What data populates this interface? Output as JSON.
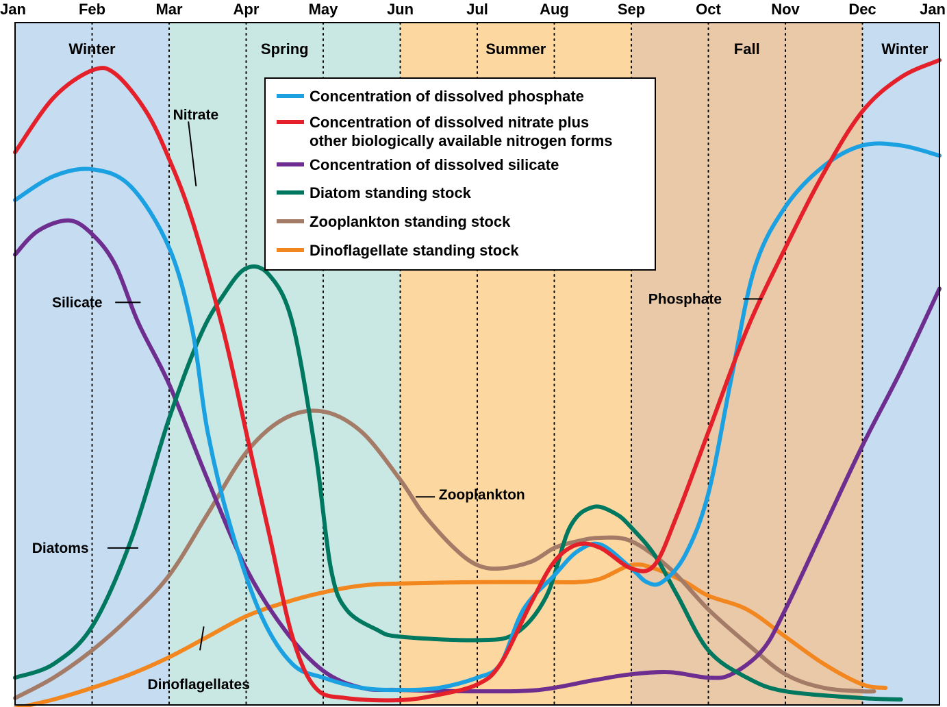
{
  "chart_data": {
    "type": "line",
    "title": "",
    "xlabel": "",
    "ylabel": "",
    "months": [
      "Jan",
      "Feb",
      "Mar",
      "Apr",
      "May",
      "Jun",
      "Jul",
      "Aug",
      "Sep",
      "Oct",
      "Nov",
      "Dec",
      "Jan"
    ],
    "x_range": [
      0,
      12
    ],
    "y_range": [
      0,
      100
    ],
    "grid": "vertical dotted lines at each month",
    "legend_position": "top-center",
    "seasons": [
      {
        "name": "Winter",
        "start": 0,
        "end": 2,
        "label_at": 1,
        "color": "#c5dcf1"
      },
      {
        "name": "Spring",
        "start": 2,
        "end": 5,
        "label_at": 3.5,
        "color": "#c9e7e3"
      },
      {
        "name": "Summer",
        "start": 5,
        "end": 8,
        "label_at": 6.5,
        "color": "#fcd8a0"
      },
      {
        "name": "Fall",
        "start": 8,
        "end": 11,
        "label_at": 9.5,
        "color": "#e9c9a7"
      },
      {
        "name": "Winter",
        "start": 11,
        "end": 12,
        "label_at": 11.55,
        "color": "#c5dcf1"
      }
    ],
    "legend": [
      {
        "lines": [
          "Concentration of dissolved phosphate"
        ],
        "color": "#1ba1e2"
      },
      {
        "lines": [
          "Concentration of dissolved nitrate plus",
          "other biologically available nitrogen forms"
        ],
        "color": "#e4202a"
      },
      {
        "lines": [
          "Concentration of dissolved silicate"
        ],
        "color": "#6e2e8f"
      },
      {
        "lines": [
          "Diatom standing stock"
        ],
        "color": "#00775f"
      },
      {
        "lines": [
          "Zooplankton standing stock"
        ],
        "color": "#a37b67"
      },
      {
        "lines": [
          "Dinoflagellate standing stock"
        ],
        "color": "#f2861f"
      }
    ],
    "series": [
      {
        "name": "Phosphate",
        "color": "#1ba1e2",
        "points": [
          [
            0,
            74
          ],
          [
            0.5,
            77.5
          ],
          [
            1,
            78.5
          ],
          [
            1.5,
            76
          ],
          [
            2,
            67
          ],
          [
            2.3,
            55
          ],
          [
            2.5,
            40
          ],
          [
            2.8,
            26
          ],
          [
            3.2,
            13
          ],
          [
            3.6,
            6
          ],
          [
            4,
            4
          ],
          [
            4.5,
            2.5
          ],
          [
            5,
            2.2
          ],
          [
            5.5,
            2.5
          ],
          [
            6,
            4
          ],
          [
            6.3,
            6
          ],
          [
            6.6,
            14
          ],
          [
            7,
            19
          ],
          [
            7.3,
            22.5
          ],
          [
            7.6,
            23.5
          ],
          [
            8,
            20
          ],
          [
            8.2,
            18
          ],
          [
            8.4,
            18
          ],
          [
            8.7,
            22
          ],
          [
            9,
            31
          ],
          [
            9.3,
            48
          ],
          [
            9.6,
            64
          ],
          [
            10,
            73
          ],
          [
            10.5,
            79
          ],
          [
            11,
            82
          ],
          [
            11.5,
            82
          ],
          [
            12,
            80.5
          ]
        ]
      },
      {
        "name": "Nitrate",
        "color": "#e4202a",
        "points": [
          [
            0,
            81
          ],
          [
            0.5,
            89
          ],
          [
            1,
            93
          ],
          [
            1.3,
            92.5
          ],
          [
            1.7,
            87
          ],
          [
            2,
            80
          ],
          [
            2.3,
            71
          ],
          [
            2.7,
            55
          ],
          [
            3,
            40
          ],
          [
            3.3,
            25
          ],
          [
            3.6,
            10
          ],
          [
            3.9,
            2.5
          ],
          [
            4.3,
            1
          ],
          [
            5,
            0.7
          ],
          [
            5.5,
            1.5
          ],
          [
            6,
            3
          ],
          [
            6.3,
            6
          ],
          [
            6.7,
            15
          ],
          [
            7,
            21
          ],
          [
            7.3,
            23.5
          ],
          [
            7.6,
            23
          ],
          [
            8,
            20
          ],
          [
            8.3,
            20.5
          ],
          [
            8.6,
            28
          ],
          [
            9,
            40
          ],
          [
            9.5,
            55
          ],
          [
            10,
            67
          ],
          [
            10.5,
            78
          ],
          [
            11,
            87
          ],
          [
            11.5,
            92
          ],
          [
            12,
            94.5
          ]
        ]
      },
      {
        "name": "Silicate",
        "color": "#6e2e8f",
        "points": [
          [
            0,
            66
          ],
          [
            0.3,
            69.5
          ],
          [
            0.7,
            71
          ],
          [
            1,
            69
          ],
          [
            1.3,
            64.5
          ],
          [
            1.6,
            56
          ],
          [
            2,
            47
          ],
          [
            2.5,
            33
          ],
          [
            3,
            20
          ],
          [
            3.5,
            11
          ],
          [
            4,
            5
          ],
          [
            4.5,
            2.5
          ],
          [
            5,
            2.2
          ],
          [
            6,
            2
          ],
          [
            6.8,
            2.2
          ],
          [
            7.5,
            3.6
          ],
          [
            8,
            4.5
          ],
          [
            8.5,
            4.8
          ],
          [
            9,
            4
          ],
          [
            9.3,
            4.5
          ],
          [
            9.7,
            8
          ],
          [
            10,
            14
          ],
          [
            10.5,
            26
          ],
          [
            11,
            38
          ],
          [
            11.5,
            49
          ],
          [
            12,
            61
          ]
        ]
      },
      {
        "name": "Diatoms",
        "color": "#00775f",
        "points": [
          [
            0,
            4
          ],
          [
            0.5,
            6
          ],
          [
            1,
            11.5
          ],
          [
            1.5,
            24
          ],
          [
            2,
            42
          ],
          [
            2.4,
            54
          ],
          [
            2.7,
            60
          ],
          [
            3,
            64
          ],
          [
            3.3,
            63
          ],
          [
            3.6,
            56
          ],
          [
            3.9,
            37
          ],
          [
            4.1,
            20
          ],
          [
            4.3,
            14
          ],
          [
            4.7,
            11
          ],
          [
            5,
            10
          ],
          [
            6,
            9.5
          ],
          [
            6.5,
            10.5
          ],
          [
            6.9,
            16
          ],
          [
            7.2,
            26
          ],
          [
            7.5,
            29
          ],
          [
            7.8,
            28
          ],
          [
            8,
            26
          ],
          [
            8.3,
            22
          ],
          [
            8.6,
            16
          ],
          [
            9,
            8
          ],
          [
            9.5,
            4
          ],
          [
            10,
            2
          ],
          [
            11,
            1
          ],
          [
            11.5,
            0.8
          ]
        ]
      },
      {
        "name": "Zooplankton",
        "color": "#a37b67",
        "points": [
          [
            0,
            1
          ],
          [
            0.5,
            4
          ],
          [
            1,
            8
          ],
          [
            1.5,
            13
          ],
          [
            2,
            19
          ],
          [
            2.5,
            28
          ],
          [
            3,
            37
          ],
          [
            3.5,
            42
          ],
          [
            4,
            43
          ],
          [
            4.5,
            40
          ],
          [
            5,
            33
          ],
          [
            5.3,
            28
          ],
          [
            5.7,
            23
          ],
          [
            6,
            20.5
          ],
          [
            6.3,
            20
          ],
          [
            6.7,
            21
          ],
          [
            7,
            23
          ],
          [
            7.3,
            24
          ],
          [
            7.6,
            24.5
          ],
          [
            8,
            24
          ],
          [
            8.5,
            20
          ],
          [
            9,
            14
          ],
          [
            9.5,
            9
          ],
          [
            10,
            4.5
          ],
          [
            10.5,
            2.5
          ],
          [
            11,
            2
          ],
          [
            11.15,
            2
          ]
        ]
      },
      {
        "name": "Dinoflagellates",
        "color": "#f2861f",
        "points": [
          [
            0,
            -0.5
          ],
          [
            0.5,
            0.8
          ],
          [
            1,
            2.5
          ],
          [
            1.5,
            4.5
          ],
          [
            2,
            7
          ],
          [
            2.5,
            10
          ],
          [
            3,
            13
          ],
          [
            3.5,
            15
          ],
          [
            4,
            16.5
          ],
          [
            4.5,
            17.5
          ],
          [
            5,
            17.8
          ],
          [
            6,
            18
          ],
          [
            7,
            18
          ],
          [
            7.3,
            18
          ],
          [
            7.6,
            18.5
          ],
          [
            8,
            20.5
          ],
          [
            8.3,
            20
          ],
          [
            8.7,
            18
          ],
          [
            9,
            16
          ],
          [
            9.5,
            14
          ],
          [
            10,
            10
          ],
          [
            10.5,
            6
          ],
          [
            11,
            3
          ],
          [
            11.3,
            2.5
          ]
        ]
      }
    ],
    "annotations": [
      {
        "text": "Nitrate",
        "x": 2.05,
        "y": 86.5,
        "anchor": "start",
        "leader": [
          [
            2.25,
            85.5
          ],
          [
            2.35,
            76
          ]
        ]
      },
      {
        "text": "Silicate",
        "x": 0.48,
        "y": 59,
        "anchor": "start",
        "leader": [
          [
            1.3,
            59
          ],
          [
            1.63,
            59
          ]
        ]
      },
      {
        "text": "Diatoms",
        "x": 0.22,
        "y": 23,
        "anchor": "start",
        "leader": [
          [
            1.2,
            23
          ],
          [
            1.6,
            23
          ]
        ]
      },
      {
        "text": "Dinoflagellates",
        "x": 1.72,
        "y": 3,
        "anchor": "start",
        "leader": [
          [
            2.4,
            8
          ],
          [
            2.45,
            11.5
          ]
        ]
      },
      {
        "text": "Zooplankton",
        "x": 5.5,
        "y": 30.8,
        "anchor": "start",
        "leader": [
          [
            5.2,
            30.5
          ],
          [
            5.45,
            30.5
          ]
        ]
      },
      {
        "text": "Phosphate",
        "x": 8.22,
        "y": 59.5,
        "anchor": "start",
        "leader": [
          [
            9.45,
            59.5
          ],
          [
            9.7,
            59.5
          ]
        ]
      }
    ]
  }
}
